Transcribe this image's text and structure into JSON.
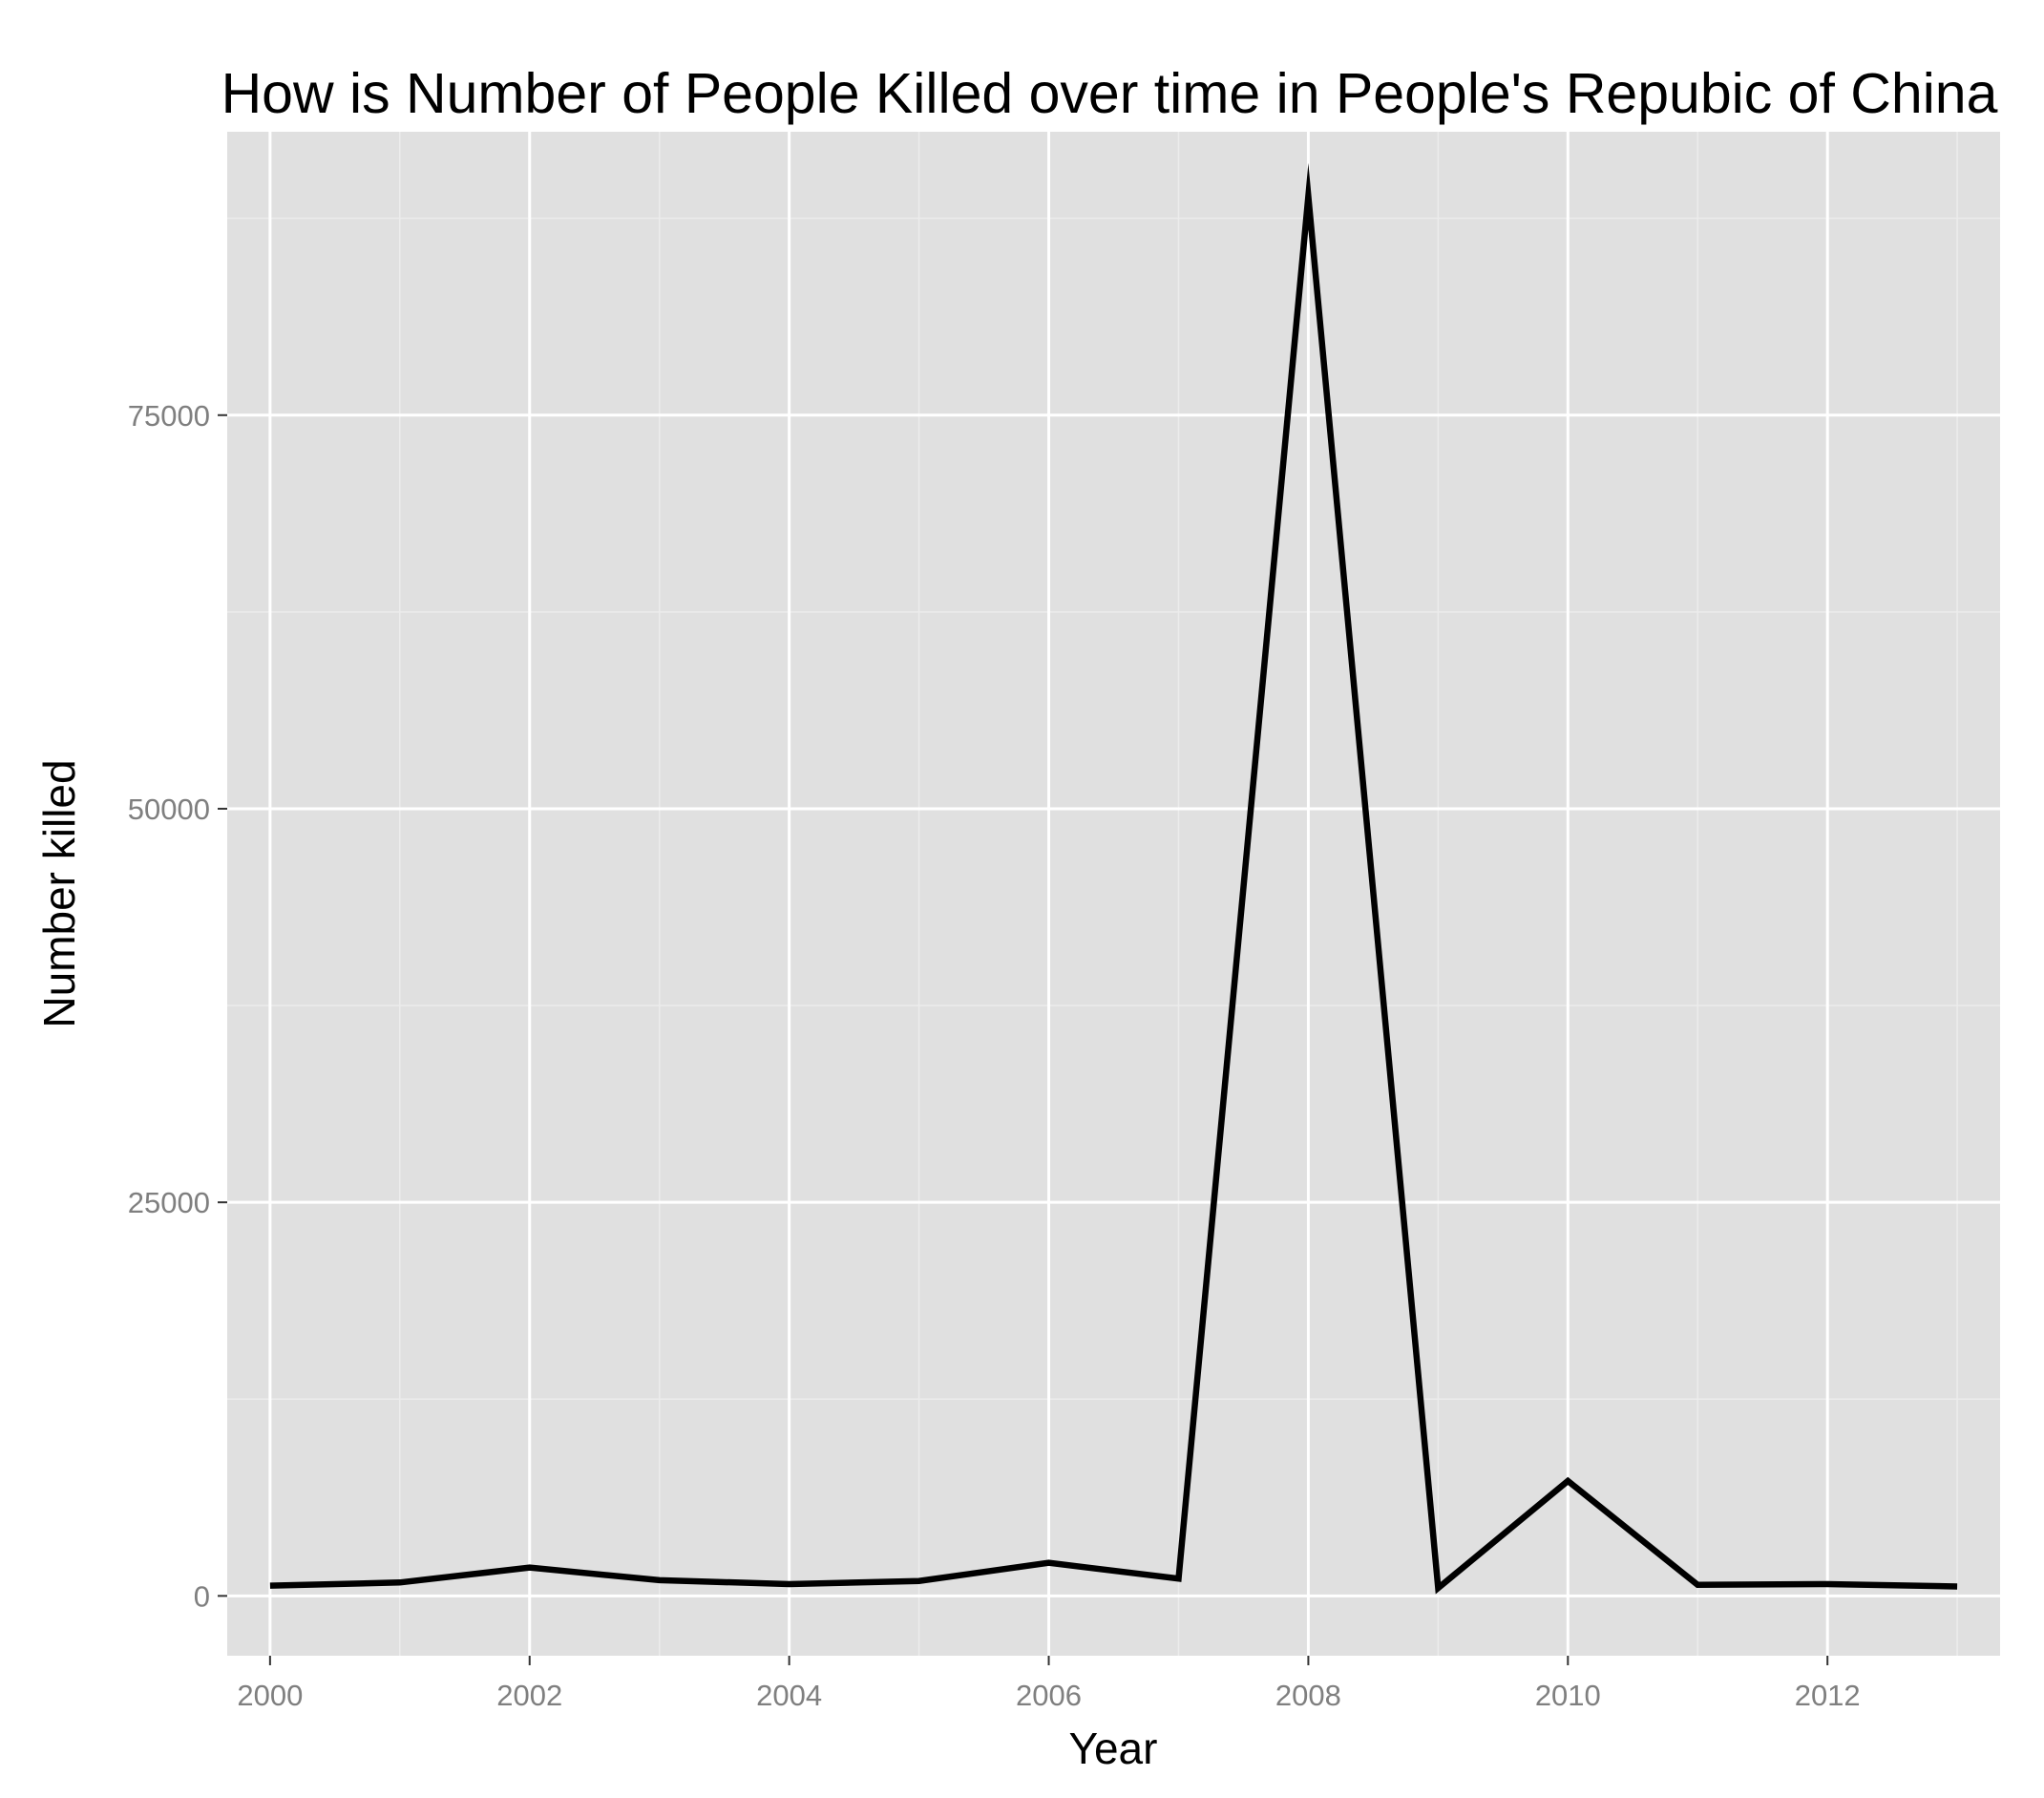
{
  "chart_data": {
    "type": "line",
    "title": "How is Number of People Killed over time in People's Repubic of China",
    "xlabel": "Year",
    "ylabel": "Number killed",
    "x": [
      2000,
      2001,
      2002,
      2003,
      2004,
      2005,
      2006,
      2007,
      2008,
      2009,
      2010,
      2011,
      2012,
      2013
    ],
    "series": [
      {
        "values": [
          650,
          850,
          1800,
          1000,
          750,
          950,
          2100,
          1100,
          88900,
          500,
          7300,
          700,
          750,
          600
        ]
      }
    ],
    "x_ticks": [
      "2000",
      "2002",
      "2004",
      "2006",
      "2008",
      "2010",
      "2012"
    ],
    "y_ticks": [
      "0",
      "25000",
      "50000",
      "75000"
    ],
    "xlim": [
      1999.67,
      2013.33
    ],
    "ylim": [
      -3800,
      93000
    ],
    "grid": true,
    "legend": "none",
    "colors": {
      "panel_background": "#e0e0e0",
      "grid_major": "#ffffff",
      "grid_minor": "#ececec",
      "line": "#000000",
      "tick_text": "#7f7f7f"
    }
  }
}
